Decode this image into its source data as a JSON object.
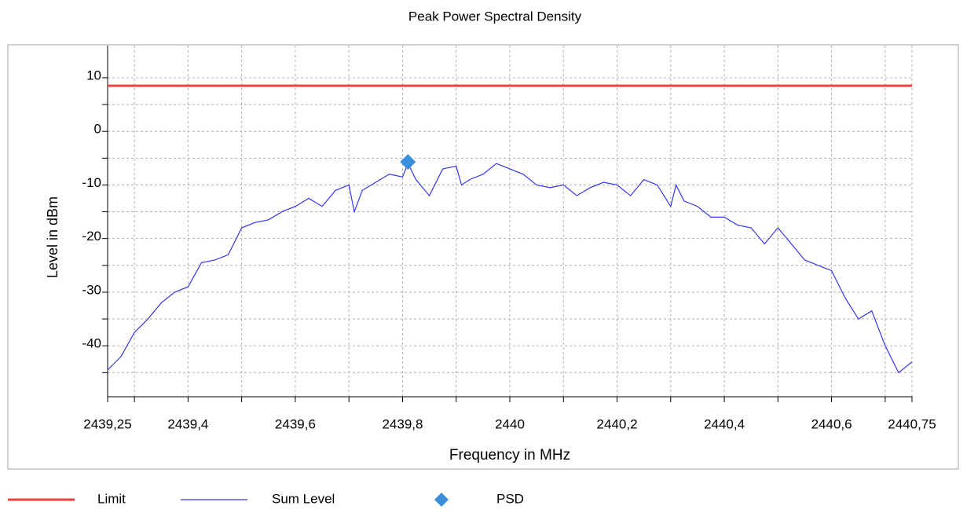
{
  "chart_data": {
    "type": "line",
    "title": "Peak Power Spectral Density",
    "x_label": "Frequency in MHz",
    "y_label": "Level in dBm",
    "xlim": [
      2439.25,
      2440.75
    ],
    "ylim": [
      -49.5,
      16
    ],
    "xticks": [
      {
        "value": 2439.25,
        "label": "2439,25"
      },
      {
        "value": 2439.4,
        "label": "2439,4"
      },
      {
        "value": 2439.6,
        "label": "2439,6"
      },
      {
        "value": 2439.8,
        "label": "2439,8"
      },
      2440,
      {
        "value": 2440.2,
        "label": "2440,2"
      },
      {
        "value": 2440.4,
        "label": "2440,4"
      },
      {
        "value": 2440.6,
        "label": "2440,6"
      },
      {
        "value": 2440.75,
        "label": "2440,75"
      }
    ],
    "xminorticks": [
      2439.3,
      2439.5,
      2439.7,
      2439.9,
      2440.1,
      2440.3,
      2440.5,
      2440.7
    ],
    "yticks": [
      10,
      0,
      -10,
      -20,
      -30,
      -40
    ],
    "yminorticks": [
      5,
      -5,
      -15,
      -25,
      -35,
      -45
    ],
    "grid": true,
    "series": [
      {
        "name": "Limit",
        "color": "#f04040",
        "x": [
          2439.25,
          2440.75
        ],
        "values": [
          8.5,
          8.5
        ]
      },
      {
        "name": "Sum Level",
        "color": "#3535f0",
        "x": [
          2439.25,
          2439.275,
          2439.3,
          2439.325,
          2439.35,
          2439.375,
          2439.4,
          2439.425,
          2439.45,
          2439.475,
          2439.5,
          2439.525,
          2439.55,
          2439.575,
          2439.6,
          2439.625,
          2439.65,
          2439.675,
          2439.7,
          2439.71,
          2439.725,
          2439.75,
          2439.775,
          2439.8,
          2439.81,
          2439.825,
          2439.85,
          2439.875,
          2439.9,
          2439.91,
          2439.925,
          2439.95,
          2439.975,
          2440,
          2440.025,
          2440.05,
          2440.075,
          2440.1,
          2440.125,
          2440.15,
          2440.175,
          2440.2,
          2440.225,
          2440.25,
          2440.275,
          2440.3,
          2440.31,
          2440.325,
          2440.35,
          2440.375,
          2440.4,
          2440.425,
          2440.45,
          2440.475,
          2440.5,
          2440.525,
          2440.55,
          2440.575,
          2440.6,
          2440.625,
          2440.65,
          2440.675,
          2440.7,
          2440.725,
          2440.75
        ],
        "values": [
          -44.5,
          -42,
          -37.5,
          -35,
          -32,
          -30,
          -29,
          -24.5,
          -24,
          -23,
          -18,
          -17,
          -16.5,
          -15,
          -14,
          -12.5,
          -14,
          -11,
          -10,
          -15,
          -11,
          -9.5,
          -8,
          -8.5,
          -6,
          -9,
          -12,
          -7,
          -6.5,
          -10,
          -9,
          -8,
          -6,
          -7,
          -8,
          -10,
          -10.5,
          -10,
          -12,
          -10.5,
          -9.5,
          -10,
          -12,
          -9,
          -10,
          -14,
          -10,
          -13,
          -14,
          -16,
          -16,
          -17.5,
          -18,
          -21,
          -18,
          -21,
          -24,
          -25,
          -26,
          -31,
          -35,
          -33.5,
          -40,
          -45,
          -43
        ]
      },
      {
        "name": "PSD",
        "color": "#3a8fd8",
        "marker": "diamond",
        "x": [
          2439.81
        ],
        "values": [
          -5.7
        ]
      }
    ],
    "legend": "bottom"
  }
}
